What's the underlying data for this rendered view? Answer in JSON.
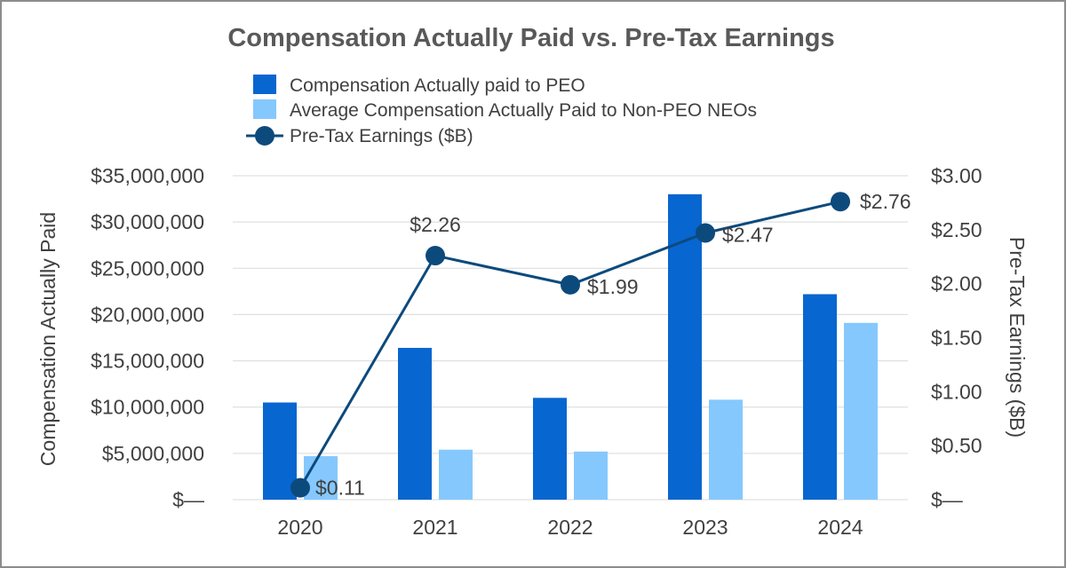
{
  "chart_data": {
    "type": "bar",
    "title": "Compensation Actually Paid vs. Pre-Tax Earnings",
    "categories": [
      "2020",
      "2021",
      "2022",
      "2023",
      "2024"
    ],
    "ylabel": "Compensation Actually Paid",
    "y2label": "Pre-Tax Earnings ($B)",
    "ylim": [
      0,
      35000000
    ],
    "y2lim": [
      0,
      3.0
    ],
    "y_ticks": [
      "$—",
      "$5,000,000",
      "$10,000,000",
      "$15,000,000",
      "$20,000,000",
      "$25,000,000",
      "$30,000,000",
      "$35,000,000"
    ],
    "y2_ticks": [
      "$—",
      "$0.50",
      "$1.00",
      "$1.50",
      "$2.00",
      "$2.50",
      "$3.00"
    ],
    "grid": true,
    "legend_position": "top",
    "series": [
      {
        "name": "Compensation Actually paid to PEO",
        "type": "bar",
        "axis": "left",
        "color": "#0866d0",
        "values": [
          10500000,
          16400000,
          11000000,
          33000000,
          22200000
        ]
      },
      {
        "name": "Average Compensation Actually Paid to Non-PEO NEOs",
        "type": "bar",
        "axis": "left",
        "color": "#85c8fd",
        "values": [
          4700000,
          5400000,
          5200000,
          10800000,
          19100000
        ]
      },
      {
        "name": "Pre-Tax Earnings ($B)",
        "type": "line",
        "axis": "right",
        "color": "#0d4a7c",
        "values": [
          0.11,
          2.26,
          1.99,
          2.47,
          2.76
        ],
        "labels": [
          "$0.11",
          "$2.26",
          "$1.99",
          "$2.47",
          "$2.76"
        ]
      }
    ]
  }
}
